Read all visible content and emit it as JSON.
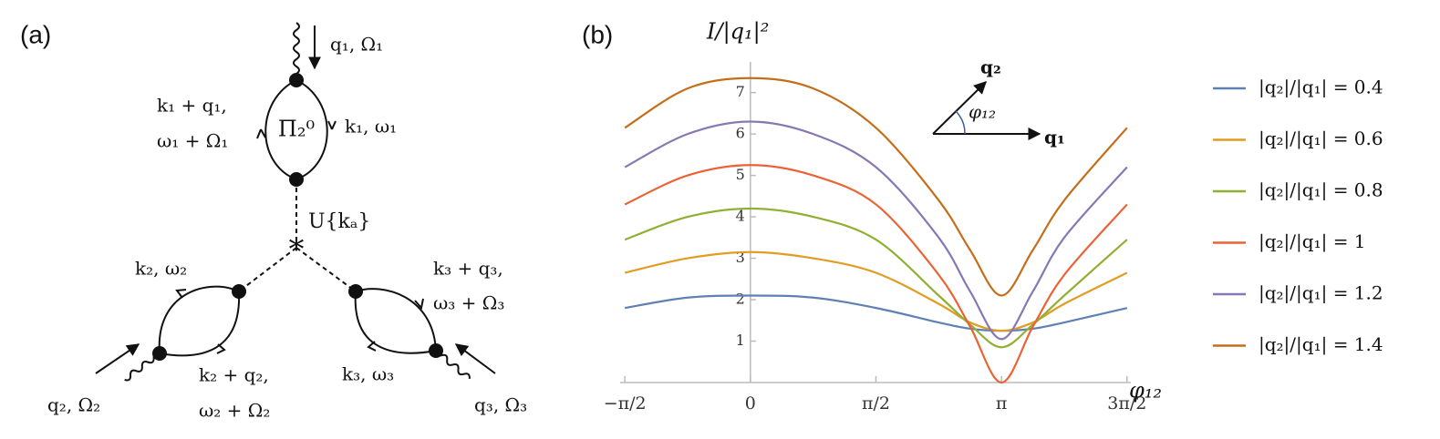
{
  "panel_labels": [
    "(a)",
    "(b)"
  ],
  "diagram": {
    "labels": [
      "q₁, Ω₁",
      "k₁ + q₁,",
      "ω₁ + Ω₁",
      "Π₂⁰",
      "k₁, ω₁",
      "U{kₐ}",
      "k₂, ω₂",
      "k₃ + q₃,",
      "ω₃ + Ω₃",
      "k₂ + q₂,",
      "ω₂ + Ω₂",
      "k₃, ω₃",
      "q₂, Ω₂",
      "q₃, Ω₃"
    ]
  },
  "chart_data": {
    "type": "line",
    "ylabel": "I/|q₁|²",
    "xlabel": "φ₁₂",
    "annotations": [
      "q₂",
      "φ₁₂",
      "q₁"
    ],
    "x": [
      -1.5708,
      -0.7854,
      0,
      0.7854,
      1.5708,
      2.3562,
      2.7489,
      3.1416,
      3.5343,
      3.927,
      4.7124
    ],
    "series": [
      {
        "name": "|q₂|/|q₁| = 0.4",
        "color": "#5e81b5",
        "values": [
          1.8,
          2.05,
          2.1,
          2.05,
          1.8,
          1.45,
          1.3,
          1.25,
          1.3,
          1.45,
          1.8
        ]
      },
      {
        "name": "|q₂|/|q₁| = 0.6",
        "color": "#e19c24",
        "values": [
          2.65,
          3.0,
          3.15,
          3.0,
          2.65,
          1.9,
          1.45,
          1.25,
          1.45,
          1.9,
          2.65
        ]
      },
      {
        "name": "|q₂|/|q₁| = 0.8",
        "color": "#8fb032",
        "values": [
          3.45,
          4.0,
          4.2,
          4.0,
          3.45,
          2.1,
          1.4,
          0.85,
          1.4,
          2.1,
          3.45
        ]
      },
      {
        "name": "|q₂|/|q₁| = 1",
        "color": "#eb6235",
        "values": [
          4.3,
          5.0,
          5.25,
          5.0,
          4.3,
          2.6,
          1.35,
          0,
          1.35,
          2.6,
          4.3
        ]
      },
      {
        "name": "|q₂|/|q₁| = 1.2",
        "color": "#8778b3",
        "values": [
          5.2,
          6.0,
          6.3,
          6.0,
          5.2,
          3.5,
          2.2,
          1.05,
          2.2,
          3.5,
          5.2
        ]
      },
      {
        "name": "|q₂|/|q₁| = 1.4",
        "color": "#c56e1a",
        "values": [
          6.15,
          7.1,
          7.35,
          7.1,
          6.15,
          4.4,
          3.2,
          2.1,
          3.2,
          4.4,
          6.15
        ]
      }
    ],
    "xlim": [
      -1.63,
      4.76
    ],
    "ylim": [
      0,
      7.74
    ],
    "xticks": [
      {
        "value": -1.5708,
        "label": "−π/2"
      },
      0,
      {
        "value": 1.5708,
        "label": "π/2"
      },
      {
        "value": 3.1416,
        "label": "π"
      },
      {
        "value": 4.7124,
        "label": "3π/2"
      }
    ],
    "yticks": [
      1,
      2,
      3,
      4,
      5,
      6,
      7
    ],
    "legend": "right"
  }
}
